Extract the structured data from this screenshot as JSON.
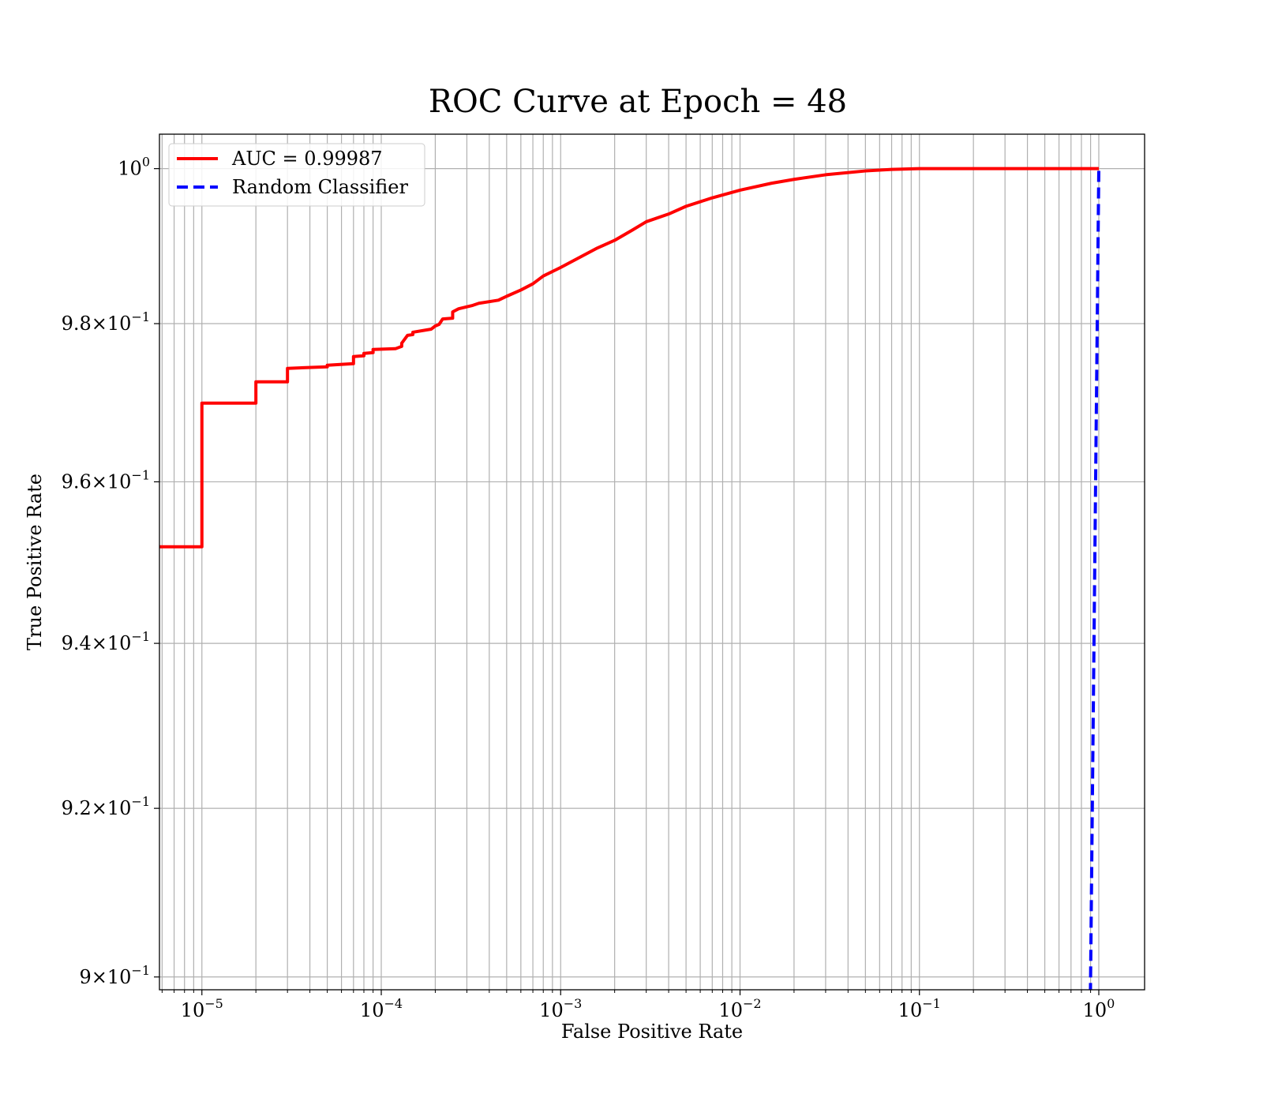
{
  "chart_data": {
    "type": "line",
    "title": "ROC Curve at Epoch = 48",
    "xlabel": "False Positive Rate",
    "ylabel": "True Positive Rate",
    "xscale": "log",
    "yscale": "log",
    "xlim": [
      5.8e-06,
      1.8
    ],
    "ylim": [
      0.8985,
      1.0045
    ],
    "grid": true,
    "grid_minor": true,
    "legend_position": "upper-left",
    "xticks": [
      {
        "value": 1e-05,
        "base": "10",
        "exp": "−5"
      },
      {
        "value": 0.0001,
        "base": "10",
        "exp": "−4"
      },
      {
        "value": 0.001,
        "base": "10",
        "exp": "−3"
      },
      {
        "value": 0.01,
        "base": "10",
        "exp": "−2"
      },
      {
        "value": 0.1,
        "base": "10",
        "exp": "−1"
      },
      {
        "value": 1,
        "base": "10",
        "exp": "0"
      }
    ],
    "yticks": [
      {
        "value": 1.0,
        "base": "10",
        "exp": "0"
      },
      {
        "value": 0.98,
        "base": "9.8×10",
        "exp": "−1"
      },
      {
        "value": 0.96,
        "base": "9.6×10",
        "exp": "−1"
      },
      {
        "value": 0.94,
        "base": "9.4×10",
        "exp": "−1"
      },
      {
        "value": 0.92,
        "base": "9.2×10",
        "exp": "−1"
      },
      {
        "value": 0.9,
        "base": "9×10",
        "exp": "−1"
      }
    ],
    "series": [
      {
        "name": "AUC = 0.99987",
        "color": "#ff0000",
        "style": "solid",
        "x": [
          5.8e-06,
          1e-05,
          1e-05,
          2e-05,
          2e-05,
          3e-05,
          3e-05,
          5e-05,
          5e-05,
          7e-05,
          7e-05,
          8e-05,
          8e-05,
          9e-05,
          9e-05,
          0.00012,
          0.00013,
          0.00013,
          0.00014,
          0.00015,
          0.00015,
          0.00019,
          0.0002,
          0.00021,
          0.00022,
          0.00025,
          0.00025,
          0.00027,
          0.00032,
          0.00035,
          0.00045,
          0.0005,
          0.0006,
          0.0007,
          0.0008,
          0.001,
          0.0013,
          0.0016,
          0.002,
          0.0025,
          0.003,
          0.004,
          0.005,
          0.007,
          0.01,
          0.015,
          0.02,
          0.03,
          0.05,
          0.07,
          0.1,
          0.2,
          0.5,
          1.0
        ],
        "y": [
          0.9519,
          0.9519,
          0.9699,
          0.9699,
          0.9726,
          0.9726,
          0.9743,
          0.9745,
          0.9747,
          0.9749,
          0.9758,
          0.9759,
          0.9762,
          0.9763,
          0.9767,
          0.9768,
          0.9771,
          0.9775,
          0.9785,
          0.9786,
          0.9789,
          0.9793,
          0.9797,
          0.9799,
          0.9806,
          0.9807,
          0.9815,
          0.9819,
          0.9823,
          0.9826,
          0.983,
          0.9835,
          0.9843,
          0.9851,
          0.9861,
          0.9872,
          0.9886,
          0.9897,
          0.9907,
          0.992,
          0.9931,
          0.9941,
          0.9951,
          0.9962,
          0.9972,
          0.9981,
          0.9986,
          0.9992,
          0.9997,
          0.9999,
          1.0,
          1.0,
          1.0,
          1.0
        ]
      },
      {
        "name": "Random Classifier",
        "color": "#0000ff",
        "style": "dashed",
        "x": [
          0.898,
          0.92,
          0.94,
          0.96,
          0.98,
          1.0
        ],
        "y": [
          0.898,
          0.92,
          0.94,
          0.96,
          0.98,
          1.0
        ]
      }
    ]
  }
}
